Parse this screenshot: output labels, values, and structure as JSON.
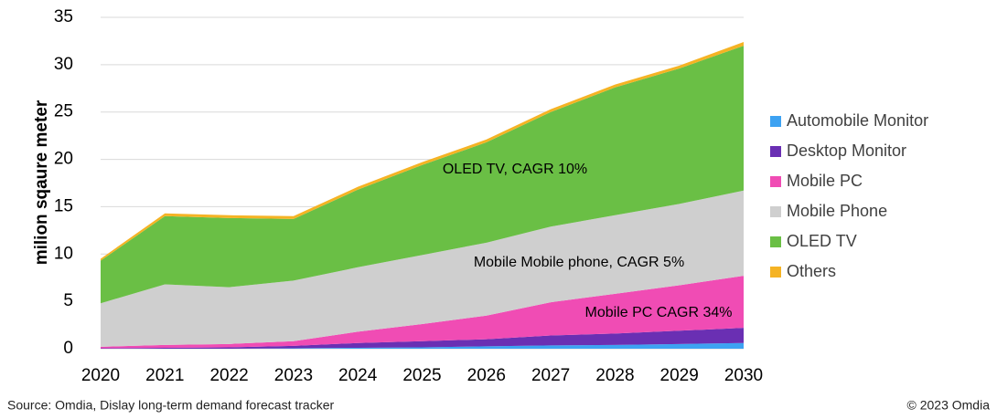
{
  "chart_data": {
    "type": "stacked_area",
    "y_label": "milion sqaure meter",
    "categories": [
      "2020",
      "2021",
      "2022",
      "2023",
      "2024",
      "2025",
      "2026",
      "2027",
      "2028",
      "2029",
      "2030"
    ],
    "series": [
      {
        "name": "Automobile Monitor",
        "color": "#3da2f2",
        "values": [
          0,
          0,
          0,
          0.05,
          0.1,
          0.15,
          0.25,
          0.35,
          0.4,
          0.5,
          0.6
        ]
      },
      {
        "name": "Desktop Monitor",
        "color": "#6a2fb3",
        "values": [
          0.05,
          0.1,
          0.15,
          0.25,
          0.5,
          0.65,
          0.75,
          1.05,
          1.2,
          1.4,
          1.6
        ]
      },
      {
        "name": "Mobile PC",
        "color": "#f04cb4",
        "values": [
          0.15,
          0.3,
          0.35,
          0.5,
          1.2,
          1.8,
          2.5,
          3.5,
          4.2,
          4.8,
          5.5
        ]
      },
      {
        "name": "Mobile Phone",
        "color": "#cfcfcf",
        "values": [
          4.6,
          6.4,
          6.0,
          6.4,
          6.8,
          7.3,
          7.7,
          8.0,
          8.3,
          8.6,
          9.0
        ]
      },
      {
        "name": "OLED TV",
        "color": "#6abf45",
        "values": [
          4.5,
          7.2,
          7.3,
          6.5,
          8.2,
          9.5,
          10.6,
          12.1,
          13.5,
          14.3,
          15.3
        ]
      },
      {
        "name": "Others",
        "color": "#f5b324",
        "values": [
          0.2,
          0.3,
          0.3,
          0.3,
          0.3,
          0.3,
          0.3,
          0.3,
          0.3,
          0.3,
          0.4
        ]
      }
    ],
    "ylim": [
      0,
      35
    ],
    "yticks": [
      0,
      5,
      10,
      15,
      20,
      25,
      30,
      35
    ],
    "grid": true,
    "annotations": [
      "OLED TV, CAGR 10%",
      "Mobile Mobile phone, CAGR 5%",
      "Mobile PC CAGR 34%"
    ],
    "source": "Source: Omdia, Dislay long-term demand forecast tracker",
    "copyright": "© 2023 Omdia"
  }
}
